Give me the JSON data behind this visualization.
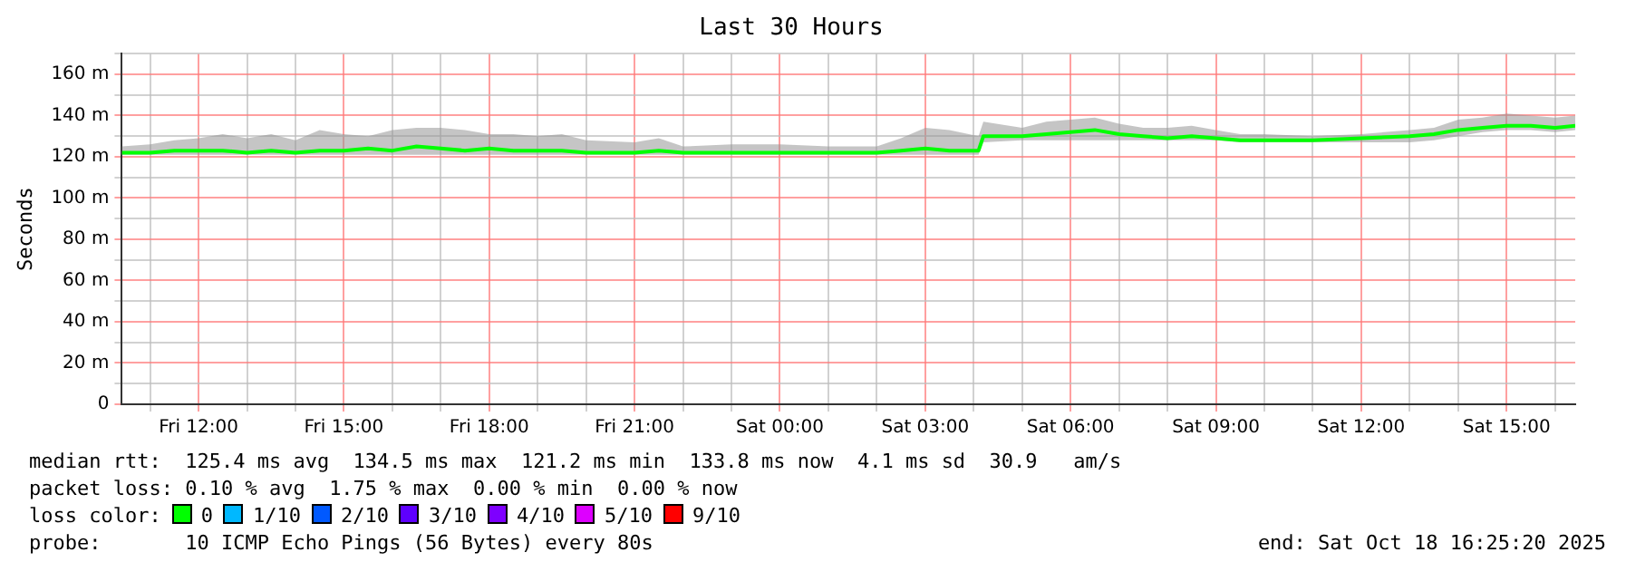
{
  "chart_data": {
    "type": "line",
    "title": "Last 30 Hours",
    "ylabel": "Seconds",
    "xlim": [
      "2025-10-17T10:25",
      "2025-10-18T16:25"
    ],
    "xticks": [
      {
        "value": "2025-10-17T11:00",
        "label": null
      },
      {
        "value": "2025-10-17T12:00",
        "label": "Fri 12:00"
      },
      {
        "value": "2025-10-17T13:00",
        "label": null
      },
      {
        "value": "2025-10-17T14:00",
        "label": null
      },
      {
        "value": "2025-10-17T15:00",
        "label": "Fri 15:00"
      },
      {
        "value": "2025-10-17T16:00",
        "label": null
      },
      {
        "value": "2025-10-17T17:00",
        "label": null
      },
      {
        "value": "2025-10-17T18:00",
        "label": "Fri 18:00"
      },
      {
        "value": "2025-10-17T19:00",
        "label": null
      },
      {
        "value": "2025-10-17T20:00",
        "label": null
      },
      {
        "value": "2025-10-17T21:00",
        "label": "Fri 21:00"
      },
      {
        "value": "2025-10-17T22:00",
        "label": null
      },
      {
        "value": "2025-10-17T23:00",
        "label": null
      },
      {
        "value": "2025-10-18T00:00",
        "label": "Sat 00:00"
      },
      {
        "value": "2025-10-18T01:00",
        "label": null
      },
      {
        "value": "2025-10-18T02:00",
        "label": null
      },
      {
        "value": "2025-10-18T03:00",
        "label": "Sat 03:00"
      },
      {
        "value": "2025-10-18T04:00",
        "label": null
      },
      {
        "value": "2025-10-18T05:00",
        "label": null
      },
      {
        "value": "2025-10-18T06:00",
        "label": "Sat 06:00"
      },
      {
        "value": "2025-10-18T07:00",
        "label": null
      },
      {
        "value": "2025-10-18T08:00",
        "label": null
      },
      {
        "value": "2025-10-18T09:00",
        "label": "Sat 09:00"
      },
      {
        "value": "2025-10-18T10:00",
        "label": null
      },
      {
        "value": "2025-10-18T11:00",
        "label": null
      },
      {
        "value": "2025-10-18T12:00",
        "label": "Sat 12:00"
      },
      {
        "value": "2025-10-18T13:00",
        "label": null
      },
      {
        "value": "2025-10-18T14:00",
        "label": null
      },
      {
        "value": "2025-10-18T15:00",
        "label": "Sat 15:00"
      },
      {
        "value": "2025-10-18T16:00",
        "label": null
      }
    ],
    "ylim": [
      0,
      170
    ],
    "yticks": [
      {
        "value": 0,
        "label": "0"
      },
      {
        "value": 10,
        "label": null
      },
      {
        "value": 20,
        "label": "20 m"
      },
      {
        "value": 30,
        "label": null
      },
      {
        "value": 40,
        "label": "40 m"
      },
      {
        "value": 50,
        "label": null
      },
      {
        "value": 60,
        "label": "60 m"
      },
      {
        "value": 70,
        "label": null
      },
      {
        "value": 80,
        "label": "80 m"
      },
      {
        "value": 90,
        "label": null
      },
      {
        "value": 100,
        "label": "100 m"
      },
      {
        "value": 110,
        "label": null
      },
      {
        "value": 120,
        "label": "120 m"
      },
      {
        "value": 130,
        "label": null
      },
      {
        "value": 140,
        "label": "140 m"
      },
      {
        "value": 150,
        "label": null
      },
      {
        "value": 160,
        "label": "160 m"
      },
      {
        "value": 170,
        "label": null
      }
    ],
    "grid": true,
    "legend": false,
    "marker": "none",
    "line_style": "solid",
    "series": [
      {
        "color": "#00ff00",
        "x": [
          "2025-10-17T10:25",
          "2025-10-17T11:00",
          "2025-10-17T11:30",
          "2025-10-17T12:00",
          "2025-10-17T12:30",
          "2025-10-17T13:00",
          "2025-10-17T13:30",
          "2025-10-17T14:00",
          "2025-10-17T14:30",
          "2025-10-17T15:00",
          "2025-10-17T15:30",
          "2025-10-17T16:00",
          "2025-10-17T16:30",
          "2025-10-17T17:00",
          "2025-10-17T17:30",
          "2025-10-17T18:00",
          "2025-10-17T18:30",
          "2025-10-17T19:00",
          "2025-10-17T19:30",
          "2025-10-17T20:00",
          "2025-10-17T21:00",
          "2025-10-17T21:30",
          "2025-10-17T22:00",
          "2025-10-17T23:00",
          "2025-10-18T00:00",
          "2025-10-18T01:00",
          "2025-10-18T02:00",
          "2025-10-18T02:30",
          "2025-10-18T03:00",
          "2025-10-18T03:30",
          "2025-10-18T04:06",
          "2025-10-18T04:12",
          "2025-10-18T05:00",
          "2025-10-18T05:30",
          "2025-10-18T06:00",
          "2025-10-18T06:30",
          "2025-10-18T07:00",
          "2025-10-18T07:30",
          "2025-10-18T08:00",
          "2025-10-18T08:30",
          "2025-10-18T09:00",
          "2025-10-18T09:30",
          "2025-10-18T10:00",
          "2025-10-18T11:00",
          "2025-10-18T12:00",
          "2025-10-18T13:00",
          "2025-10-18T13:30",
          "2025-10-18T14:00",
          "2025-10-18T14:30",
          "2025-10-18T15:00",
          "2025-10-18T15:30",
          "2025-10-18T16:00",
          "2025-10-18T16:25"
        ],
        "values": [
          122,
          122,
          123,
          123,
          123,
          122,
          123,
          122,
          123,
          123,
          124,
          123,
          125,
          124,
          123,
          124,
          123,
          123,
          123,
          122,
          122,
          123,
          122,
          122,
          122,
          122,
          122,
          123,
          124,
          123,
          123,
          130,
          130,
          131,
          132,
          133,
          131,
          130,
          129,
          130,
          129,
          128,
          128,
          128,
          129,
          130,
          131,
          133,
          134,
          135,
          135,
          134,
          135
        ],
        "lower": [
          121,
          121,
          121,
          121,
          121,
          121,
          121,
          121,
          121,
          121,
          121,
          121,
          121,
          121,
          121,
          121,
          121,
          121,
          121,
          121,
          121,
          121,
          121,
          121,
          121,
          121,
          121,
          121,
          121,
          121,
          121,
          127,
          128,
          128,
          128,
          128,
          128,
          128,
          128,
          128,
          128,
          127,
          127,
          127,
          127,
          127,
          128,
          130,
          132,
          133,
          133,
          132,
          133
        ],
        "upper": [
          125,
          126,
          128,
          129,
          131,
          129,
          131,
          128,
          133,
          131,
          130,
          133,
          134,
          134,
          133,
          131,
          131,
          130,
          131,
          128,
          127,
          129,
          125,
          126,
          126,
          125,
          125,
          129,
          134,
          133,
          130,
          137,
          134,
          137,
          138,
          139,
          136,
          134,
          134,
          135,
          133,
          131,
          131,
          130,
          131,
          133,
          134,
          138,
          139,
          141,
          140,
          139,
          140
        ]
      }
    ],
    "annotations": [
      "median rtt:  125.4 ms avg  134.5 ms max  121.2 ms min  133.8 ms now  4.1 ms sd  30.9   am/s",
      "packet loss: 0.10 % avg  1.75 % max  0.00 % min  0.00 % now",
      "loss color:",
      "0",
      "1/10",
      "2/10",
      "3/10",
      "4/10",
      "5/10",
      "9/10",
      "probe:",
      "10 ICMP Echo Pings (56 Bytes) every 80s",
      "end: Sat Oct 18 16:25:20 2025"
    ]
  }
}
